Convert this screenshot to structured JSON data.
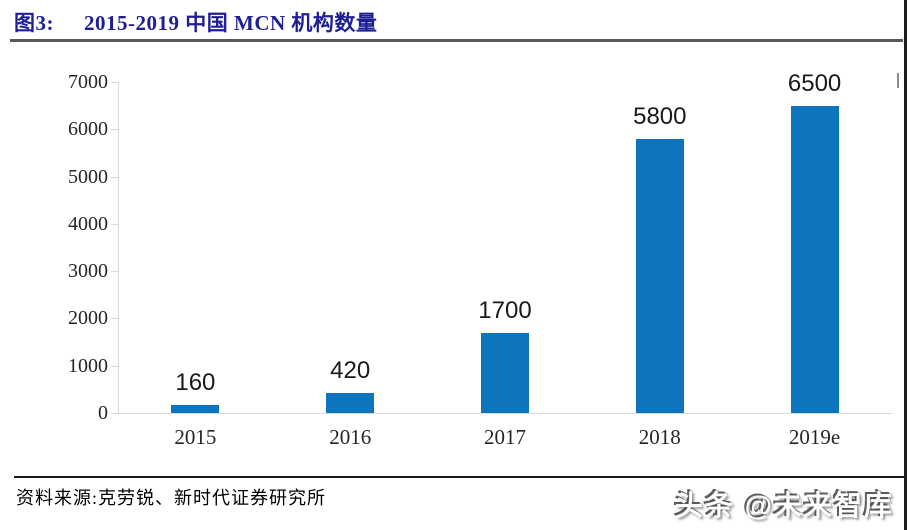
{
  "figure": {
    "label": "图3:",
    "title": "2015-2019 中国 MCN 机构数量"
  },
  "chart_data": {
    "type": "bar",
    "categories": [
      "2015",
      "2016",
      "2017",
      "2018",
      "2019e"
    ],
    "values": [
      160,
      420,
      1700,
      5800,
      6500
    ],
    "title": "2015-2019 中国 MCN 机构数量",
    "xlabel": "",
    "ylabel": "",
    "ylim": [
      0,
      7000
    ],
    "ytick_step": 1000,
    "grid": false,
    "legend": false,
    "bar_color": "#0d74be",
    "axis_color": "#d9d9d9",
    "value_label_color": "#1a1a1a",
    "tick_label_color": "#262626"
  },
  "footer": {
    "source": "资料来源:克劳锐、新时代证券研究所",
    "watermark": "头条 @未来智库"
  },
  "colors": {
    "title": "#1e1e96",
    "title_rule": "#595959",
    "footer_rule": "#1a1a1a",
    "background": "#ffffff"
  }
}
